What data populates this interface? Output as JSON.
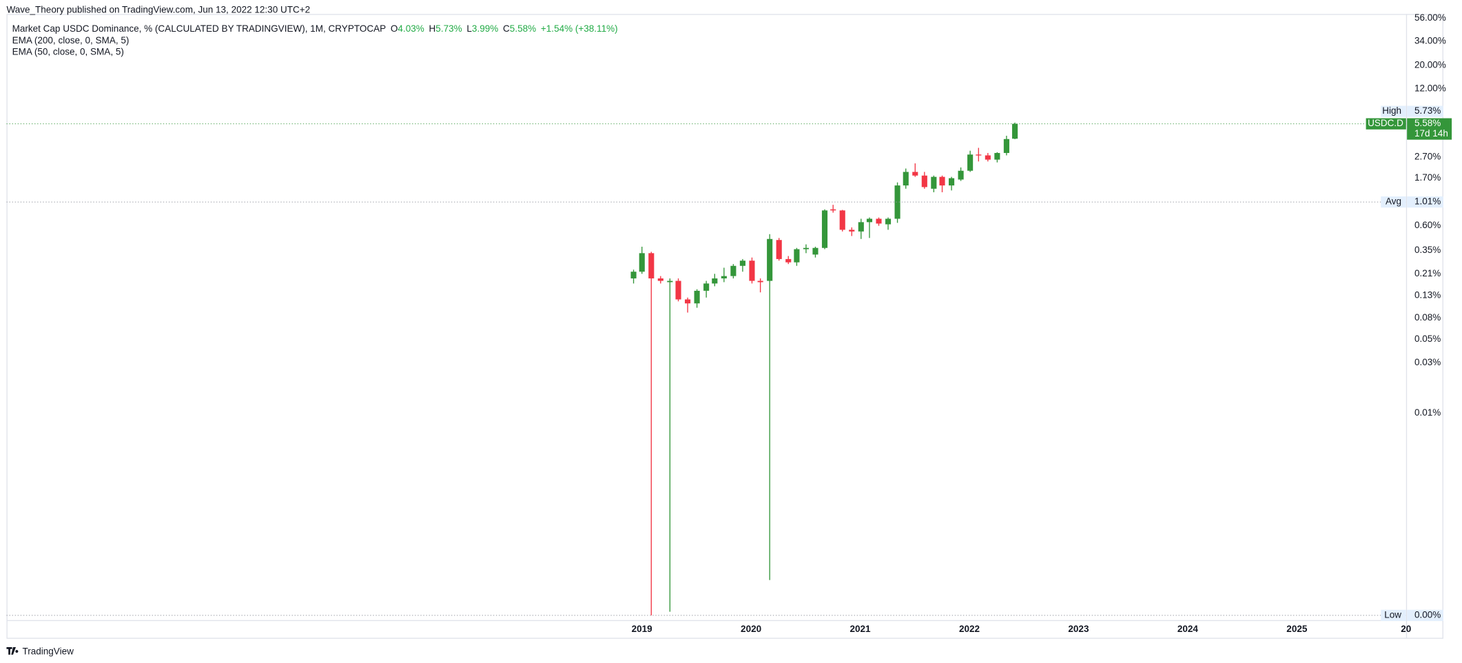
{
  "header": {
    "published": "Wave_Theory published on TradingView.com, Jun 13, 2022 12:30 UTC+2"
  },
  "legend": {
    "title": "Market Cap USDC Dominance, % (CALCULATED BY TRADINGVIEW), 1M, CRYPTOCAP",
    "ohlc_letters": [
      "O",
      "H",
      "L",
      "C"
    ],
    "ohlc_values": [
      "4.03%",
      "5.73%",
      "3.99%",
      "5.58%"
    ],
    "change": "+1.54% (+38.11%)",
    "indicators": [
      "EMA (200, close, 0, SMA, 5)",
      "EMA (50, close, 0, SMA, 5)"
    ]
  },
  "footer": {
    "brand": "TradingView"
  },
  "chart_data": {
    "type": "candlestick",
    "log_scale": true,
    "up_color": "#34963a",
    "down_color": "#f23645",
    "x": [
      "2018-12",
      "2019-01",
      "2019-02",
      "2019-03",
      "2019-04",
      "2019-05",
      "2019-06",
      "2019-07",
      "2019-08",
      "2019-09",
      "2019-10",
      "2019-11",
      "2019-12",
      "2020-01",
      "2020-02",
      "2020-03",
      "2020-04",
      "2020-05",
      "2020-06",
      "2020-07",
      "2020-08",
      "2020-09",
      "2020-10",
      "2020-11",
      "2020-12",
      "2021-01",
      "2021-02",
      "2021-03",
      "2021-04",
      "2021-05",
      "2021-06",
      "2021-07",
      "2021-08",
      "2021-09",
      "2021-10",
      "2021-11",
      "2021-12",
      "2022-01",
      "2022-02",
      "2022-03",
      "2022-04",
      "2022-05",
      "2022-06"
    ],
    "open": [
      0.19,
      0.22,
      0.33,
      0.19,
      0.175,
      0.18,
      0.12,
      0.11,
      0.145,
      0.17,
      0.19,
      0.2,
      0.25,
      0.28,
      0.18,
      0.18,
      0.44,
      0.29,
      0.27,
      0.36,
      0.32,
      0.37,
      0.86,
      0.84,
      0.55,
      0.53,
      0.65,
      0.7,
      0.62,
      0.7,
      1.45,
      1.95,
      1.8,
      1.35,
      1.75,
      1.45,
      1.65,
      2.0,
      2.85,
      2.8,
      2.55,
      2.95,
      4.03
    ],
    "high": [
      0.23,
      0.38,
      0.34,
      0.2,
      0.19,
      0.19,
      0.125,
      0.15,
      0.18,
      0.21,
      0.24,
      0.26,
      0.29,
      0.3,
      0.19,
      0.5,
      0.46,
      0.31,
      0.37,
      0.4,
      0.38,
      0.86,
      0.95,
      0.85,
      0.58,
      0.7,
      0.72,
      0.72,
      0.72,
      1.55,
      2.1,
      2.35,
      1.95,
      1.8,
      1.8,
      1.75,
      2.15,
      3.1,
      3.3,
      2.95,
      3.0,
      4.3,
      5.73
    ],
    "low": [
      0.17,
      0.21,
      0.00012,
      0.17,
      0.00013,
      0.115,
      0.09,
      0.1,
      0.125,
      0.16,
      0.175,
      0.19,
      0.22,
      0.17,
      0.14,
      0.00026,
      0.28,
      0.26,
      0.25,
      0.33,
      0.3,
      0.36,
      0.8,
      0.53,
      0.48,
      0.45,
      0.46,
      0.6,
      0.55,
      0.64,
      1.35,
      1.75,
      1.35,
      1.25,
      1.25,
      1.3,
      1.6,
      1.95,
      2.45,
      2.45,
      2.4,
      2.8,
      3.99
    ],
    "close": [
      0.22,
      0.33,
      0.19,
      0.18,
      0.18,
      0.12,
      0.11,
      0.145,
      0.17,
      0.19,
      0.2,
      0.25,
      0.28,
      0.18,
      0.175,
      0.45,
      0.29,
      0.27,
      0.36,
      0.37,
      0.37,
      0.84,
      0.84,
      0.55,
      0.53,
      0.65,
      0.7,
      0.63,
      0.7,
      1.45,
      1.95,
      1.8,
      1.4,
      1.75,
      1.45,
      1.7,
      2.0,
      2.85,
      2.8,
      2.55,
      2.95,
      4.0,
      5.58
    ],
    "xlim": [
      2013.18,
      2026.0
    ],
    "xticks": [
      2019,
      2020,
      2021,
      2022,
      2023,
      2024,
      2025,
      {
        "value": 2026,
        "label": "20"
      }
    ],
    "ylim": [
      0.000115,
      61.6
    ],
    "yticks": [
      {
        "value": 56,
        "label": "56.00%"
      },
      {
        "value": 34,
        "label": "34.00%"
      },
      {
        "value": 20,
        "label": "20.00%"
      },
      {
        "value": 12,
        "label": "12.00%"
      },
      {
        "value": 2.7,
        "label": "2.70%"
      },
      {
        "value": 1.7,
        "label": "1.70%"
      },
      {
        "value": 0.6,
        "label": "0.60%"
      },
      {
        "value": 0.35,
        "label": "0.35%"
      },
      {
        "value": 0.21,
        "label": "0.21%"
      },
      {
        "value": 0.13,
        "label": "0.13%"
      },
      {
        "value": 0.08,
        "label": "0.08%"
      },
      {
        "value": 0.05,
        "label": "0.05%"
      },
      {
        "value": 0.03,
        "label": "0.03%"
      },
      {
        "value": 0.01,
        "label": "0.01%"
      }
    ],
    "price_lines": [
      {
        "name": "High",
        "value": 5.73,
        "label": "5.73%",
        "line": false
      },
      {
        "name": "USDC.D",
        "value": 5.58,
        "label": "5.58%",
        "countdown": "17d 14h",
        "line": true,
        "current": true
      },
      {
        "name": "Avg",
        "value": 1.01,
        "label": "1.01%",
        "line": true
      },
      {
        "name": "Low",
        "value": 0.00012,
        "label": "0.00%",
        "line": true
      }
    ]
  }
}
